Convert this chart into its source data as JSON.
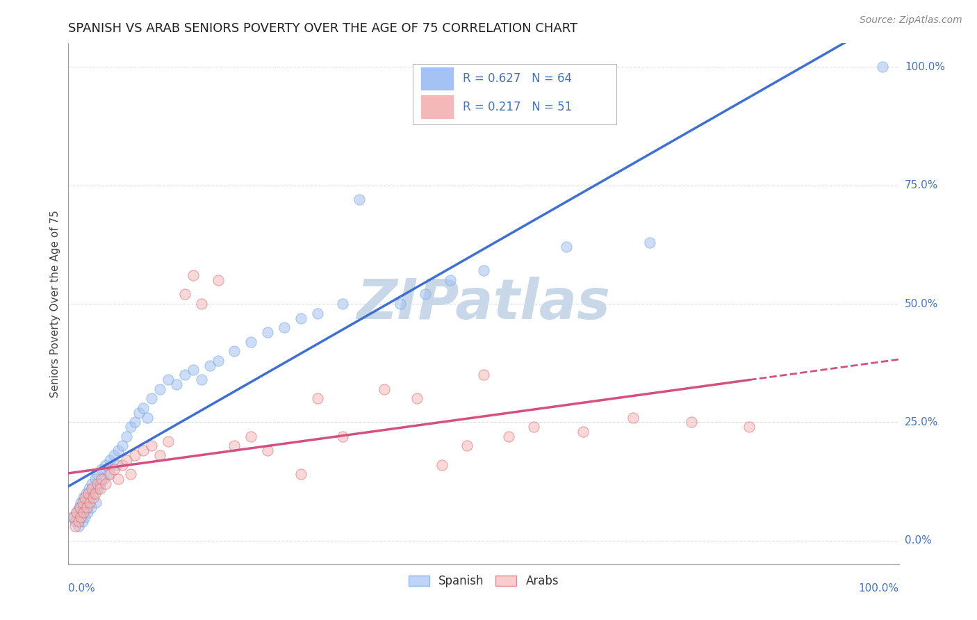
{
  "title": "SPANISH VS ARAB SENIORS POVERTY OVER THE AGE OF 75 CORRELATION CHART",
  "source_text": "Source: ZipAtlas.com",
  "ylabel": "Seniors Poverty Over the Age of 75",
  "xlim": [
    0.0,
    1.0
  ],
  "ylim": [
    -0.05,
    1.05
  ],
  "ytick_labels": [
    "0.0%",
    "25.0%",
    "50.0%",
    "75.0%",
    "100.0%"
  ],
  "ytick_vals": [
    0.0,
    0.25,
    0.5,
    0.75,
    1.0
  ],
  "background_color": "#ffffff",
  "watermark_text": "ZIPatlas",
  "watermark_color": "#c8d8e8",
  "spanish_color": "#a4c2f4",
  "spanish_edge_color": "#6fa8dc",
  "arab_color": "#f4b8b8",
  "arab_edge_color": "#e06666",
  "legend_R_spanish": "R = 0.627",
  "legend_N_spanish": "N = 64",
  "legend_R_arab": "R = 0.217",
  "legend_N_arab": "N = 51",
  "trend_color_spanish": "#3d6fd4",
  "trend_color_arab": "#d45080",
  "grid_color": "#cccccc",
  "dot_size": 120,
  "dot_alpha": 0.55,
  "spanish_x": [
    0.005,
    0.008,
    0.01,
    0.012,
    0.013,
    0.015,
    0.015,
    0.016,
    0.017,
    0.018,
    0.019,
    0.02,
    0.021,
    0.022,
    0.023,
    0.025,
    0.026,
    0.027,
    0.028,
    0.03,
    0.032,
    0.033,
    0.035,
    0.036,
    0.038,
    0.04,
    0.042,
    0.045,
    0.048,
    0.05,
    0.055,
    0.058,
    0.06,
    0.065,
    0.07,
    0.075,
    0.08,
    0.085,
    0.09,
    0.095,
    0.1,
    0.11,
    0.12,
    0.13,
    0.14,
    0.15,
    0.16,
    0.17,
    0.18,
    0.2,
    0.22,
    0.24,
    0.26,
    0.28,
    0.3,
    0.33,
    0.35,
    0.4,
    0.43,
    0.46,
    0.5,
    0.6,
    0.7,
    0.98
  ],
  "spanish_y": [
    0.05,
    0.04,
    0.06,
    0.03,
    0.07,
    0.05,
    0.08,
    0.06,
    0.04,
    0.09,
    0.07,
    0.05,
    0.1,
    0.08,
    0.06,
    0.11,
    0.09,
    0.07,
    0.12,
    0.1,
    0.13,
    0.08,
    0.14,
    0.11,
    0.12,
    0.15,
    0.13,
    0.16,
    0.14,
    0.17,
    0.18,
    0.16,
    0.19,
    0.2,
    0.22,
    0.24,
    0.25,
    0.27,
    0.28,
    0.26,
    0.3,
    0.32,
    0.34,
    0.33,
    0.35,
    0.36,
    0.34,
    0.37,
    0.38,
    0.4,
    0.42,
    0.44,
    0.45,
    0.47,
    0.48,
    0.5,
    0.72,
    0.5,
    0.52,
    0.55,
    0.57,
    0.62,
    0.63,
    1.0
  ],
  "arab_x": [
    0.006,
    0.008,
    0.01,
    0.012,
    0.014,
    0.015,
    0.017,
    0.018,
    0.02,
    0.022,
    0.024,
    0.026,
    0.028,
    0.03,
    0.032,
    0.035,
    0.038,
    0.04,
    0.045,
    0.05,
    0.055,
    0.06,
    0.065,
    0.07,
    0.075,
    0.08,
    0.09,
    0.1,
    0.11,
    0.12,
    0.14,
    0.15,
    0.16,
    0.18,
    0.2,
    0.22,
    0.24,
    0.28,
    0.3,
    0.33,
    0.38,
    0.42,
    0.45,
    0.48,
    0.5,
    0.53,
    0.56,
    0.62,
    0.68,
    0.75,
    0.82
  ],
  "arab_y": [
    0.05,
    0.03,
    0.06,
    0.04,
    0.07,
    0.05,
    0.08,
    0.06,
    0.09,
    0.07,
    0.1,
    0.08,
    0.11,
    0.09,
    0.1,
    0.12,
    0.11,
    0.13,
    0.12,
    0.14,
    0.15,
    0.13,
    0.16,
    0.17,
    0.14,
    0.18,
    0.19,
    0.2,
    0.18,
    0.21,
    0.52,
    0.56,
    0.5,
    0.55,
    0.2,
    0.22,
    0.19,
    0.14,
    0.3,
    0.22,
    0.32,
    0.3,
    0.16,
    0.2,
    0.35,
    0.22,
    0.24,
    0.23,
    0.26,
    0.25,
    0.24
  ]
}
